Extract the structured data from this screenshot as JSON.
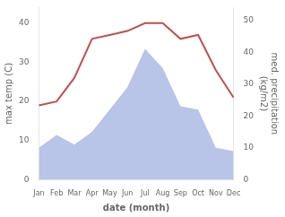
{
  "chart_data": {
    "type": "line",
    "categories": [
      "Jan",
      "Feb",
      "Mar",
      "Apr",
      "May",
      "Jun",
      "Jul",
      "Aug",
      "Sep",
      "Oct",
      "Nov",
      "Dec"
    ],
    "series": [
      {
        "type": "line",
        "color": "#c0504d",
        "values": [
          19,
          20,
          26,
          36,
          37,
          38,
          40,
          40,
          36,
          37,
          28,
          21
        ]
      },
      {
        "type": "area",
        "axis": "y2",
        "color": "#b8c4e8",
        "values": [
          10,
          14,
          11,
          15,
          22,
          29,
          41,
          35,
          23,
          22,
          10,
          9
        ]
      }
    ],
    "xlabel": "date (month)",
    "ylabel": "max temp (C)",
    "y2label": "med. precipitation\n(kg/m2)",
    "ylim": [
      0,
      44
    ],
    "yticks": [
      0,
      10,
      20,
      30,
      40
    ],
    "y2lim": [
      0,
      54
    ],
    "y2ticks": [
      0,
      10,
      20,
      30,
      40,
      50
    ],
    "grid": false
  }
}
